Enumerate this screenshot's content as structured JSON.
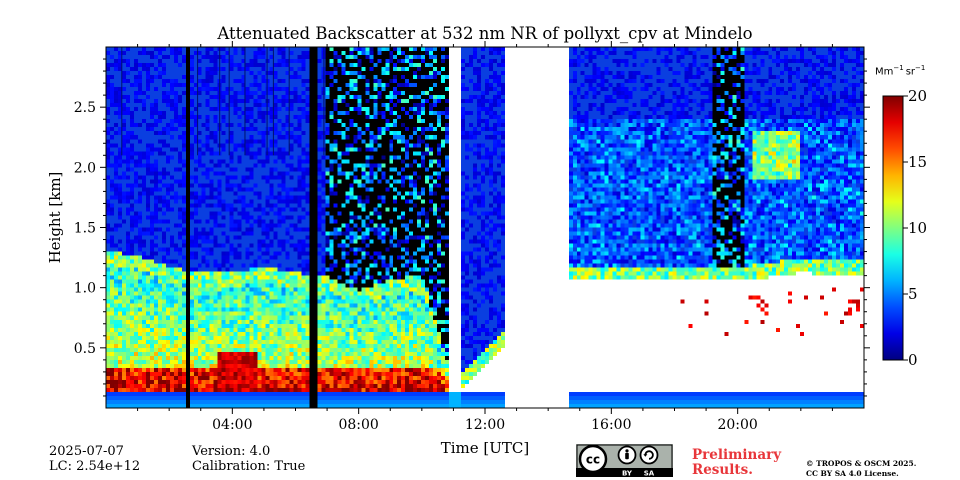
{
  "chart_data": {
    "type": "heatmap",
    "title": "Attenuated Backscatter at 532 nm NR of pollyxt_cpv at Mindelo",
    "xlabel": "Time [UTC]",
    "ylabel": "Height [km]",
    "xlim_hours": [
      0,
      24
    ],
    "ylim_km": [
      0,
      3.0
    ],
    "x_ticks": [
      {
        "hour": 4,
        "label": "04:00"
      },
      {
        "hour": 8,
        "label": "08:00"
      },
      {
        "hour": 12,
        "label": "12:00"
      },
      {
        "hour": 16,
        "label": "16:00"
      },
      {
        "hour": 20,
        "label": "20:00"
      }
    ],
    "y_ticks": [
      {
        "km": 0.5,
        "label": "0.5"
      },
      {
        "km": 1.0,
        "label": "1.0"
      },
      {
        "km": 1.5,
        "label": "1.5"
      },
      {
        "km": 2.0,
        "label": "2.0"
      },
      {
        "km": 2.5,
        "label": "2.5"
      }
    ],
    "colorbar": {
      "min": 0,
      "max": 20,
      "ticks": [
        {
          "value": 0,
          "label": "0"
        },
        {
          "value": 5,
          "label": "5"
        },
        {
          "value": 10,
          "label": "10"
        },
        {
          "value": 15,
          "label": "15"
        },
        {
          "value": 20,
          "label": "20"
        }
      ],
      "unit_base1": "Mm",
      "unit_exp1": "−1",
      "unit_base2": "sr",
      "unit_exp2": "−1"
    },
    "no_data_gaps_hours": [
      [
        10.9,
        11.3
      ],
      [
        12.6,
        14.6
      ]
    ],
    "instrument_off_hours": [
      [
        2.5,
        2.7
      ],
      [
        6.5,
        6.7
      ]
    ],
    "boundary_layer_top_km": [
      {
        "hour": 0,
        "km": 1.18
      },
      {
        "hour": 1,
        "km": 1.15
      },
      {
        "hour": 2,
        "km": 1.05
      },
      {
        "hour": 3,
        "km": 1.0
      },
      {
        "hour": 4,
        "km": 1.0
      },
      {
        "hour": 5,
        "km": 1.05
      },
      {
        "hour": 6,
        "km": 1.0
      },
      {
        "hour": 7,
        "km": 0.98
      },
      {
        "hour": 8,
        "km": 0.85
      },
      {
        "hour": 9,
        "km": 0.95
      },
      {
        "hour": 10,
        "km": 0.98
      },
      {
        "hour": 11,
        "km": 0.1
      },
      {
        "hour": 14.6,
        "km": 1.05
      },
      {
        "hour": 16,
        "km": 1.05
      },
      {
        "hour": 18,
        "km": 1.05
      },
      {
        "hour": 20,
        "km": 1.05
      },
      {
        "hour": 22,
        "km": 1.12
      },
      {
        "hour": 24,
        "km": 1.1
      }
    ]
  },
  "footer": {
    "date": "2025-07-07",
    "lc": "LC: 2.54e+12",
    "version": "Version: 4.0",
    "calibration": "Calibration: True",
    "prelim_line1": "Preliminary",
    "prelim_line2": "Results.",
    "copyright_line1": "© TROPOS & OSCM 2025.",
    "copyright_line2": "CC BY SA 4.0 License.",
    "cc_label": "cc",
    "cc_by": "BY",
    "cc_sa": "SA"
  },
  "colors": {
    "clear_sky": "#0a3fe0",
    "no_signal": "#000000",
    "no_data": "#ffffff"
  }
}
